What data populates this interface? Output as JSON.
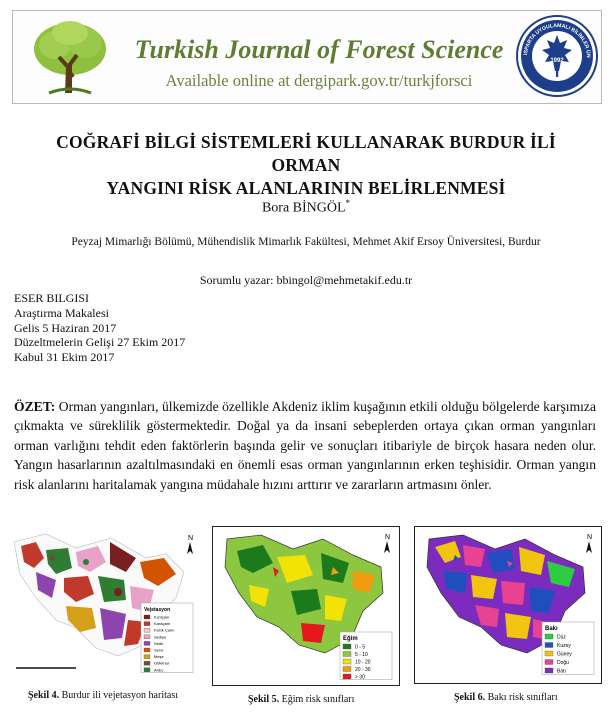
{
  "journal": {
    "title": "Turkish Journal of Forest Science",
    "subtitle": "Available online at dergipark.gov.tr/turkjforsci",
    "seal_text": "ISPARTA UYGULAMALI BİLİMLER ÜNİVERSİTESİ ORMAN FAKÜLTESİ",
    "seal_year": "1992"
  },
  "article": {
    "title_line1": "COĞRAFİ BİLGİ SİSTEMLERİ KULLANARAK BURDUR İLİ ORMAN",
    "title_line2": "YANGINI RİSK ALANLARININ BELİRLENMESİ",
    "author": "Bora BİNGÖL",
    "author_mark": "*",
    "affiliation": "Peyzaj Mimarlığı Bölümü, Mühendislik Mimarlık Fakültesi, Mehmet Akif Ersoy Üniversitesi, Burdur",
    "corresponding": "Sorumlu yazar: bbingol@mehmetakif.edu.tr"
  },
  "info": {
    "heading": "ESER BILGISI",
    "type": "Araştırma Makalesi",
    "received": "Gelis 5 Haziran 2017",
    "revised": "Düzeltmelerin Gelişi 27 Ekim 2017",
    "accepted": "Kabul 31 Ekim 2017"
  },
  "abstract": {
    "label": "ÖZET:",
    "text": "Orman yangınları, ülkemizde özellikle Akdeniz iklim kuşağının etkili olduğu bölgelerde karşımıza çıkmakta ve süreklilik göstermektedir. Doğal ya da insani sebeplerden ortaya çıkan orman yangınları orman varlığını tehdit eden faktörlerin başında gelir ve sonuçları itibariyle de birçok hasara neden olur. Yangın hasarlarının azaltılmasındaki en önemli esas orman yangınlarının erken teşhisidir. Orman yangın risk alanlarını haritalamak yangına müdahale hızını arttırır ve zararların artmasını önler."
  },
  "figures": [
    {
      "number": "Şekil 4.",
      "caption": "Burdur ili vejetasyon haritası",
      "legend_title": "Vejetasyon",
      "legend": [
        {
          "label": "Kızılçam",
          "color": "#7a1f1f"
        },
        {
          "label": "Karaçam",
          "color": "#c0392b"
        },
        {
          "label": "Fıstık Çamı",
          "color": "#f3c6c6"
        },
        {
          "label": "Sediye",
          "color": "#e8a2c8"
        },
        {
          "label": "Sedir",
          "color": "#8e44ad"
        },
        {
          "label": "Servi",
          "color": "#d35400"
        },
        {
          "label": "Meşe",
          "color": "#d4a017"
        },
        {
          "label": "Gökknar",
          "color": "#6d4c41"
        },
        {
          "label": "Ardıç",
          "color": "#2e7d32"
        }
      ]
    },
    {
      "number": "Şekil 5.",
      "caption": "Eğim risk sınıfları",
      "legend_title": "Eğim",
      "legend": [
        {
          "label": "0 - 5",
          "color": "#1b7a1b"
        },
        {
          "label": "5 - 10",
          "color": "#8dc63f"
        },
        {
          "label": "10 - 20",
          "color": "#f2e205"
        },
        {
          "label": "20 - 30",
          "color": "#f39c12"
        },
        {
          "label": "> 30",
          "color": "#e31a1c"
        }
      ]
    },
    {
      "number": "Şekil 6.",
      "caption": "Bakı risk sınıfları",
      "legend_title": "Bakı",
      "legend": [
        {
          "label": "Düz",
          "color": "#2ecc40"
        },
        {
          "label": "Kuzey",
          "color": "#1f4fbf"
        },
        {
          "label": "Güney",
          "color": "#f1c40f"
        },
        {
          "label": "Doğu",
          "color": "#e84393"
        },
        {
          "label": "Batı",
          "color": "#7b2cbf"
        }
      ]
    }
  ],
  "colors": {
    "journal_green": "#5e7d32",
    "banner_border": "#b9b9b9"
  }
}
